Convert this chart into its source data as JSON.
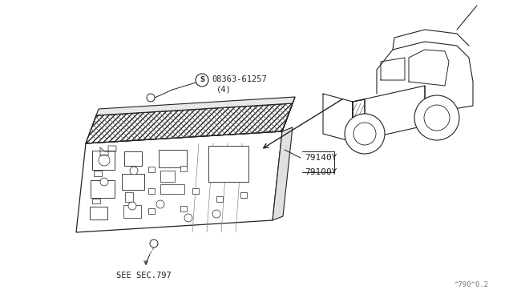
{
  "bg_color": "#ffffff",
  "line_color": "#222222",
  "page_code": "^790^0.2",
  "screw_part": "08363-61257",
  "screw_qty": "(4)",
  "label1": "79140Y",
  "label2": "79100Y",
  "see_sec": "SEE SEC.797"
}
